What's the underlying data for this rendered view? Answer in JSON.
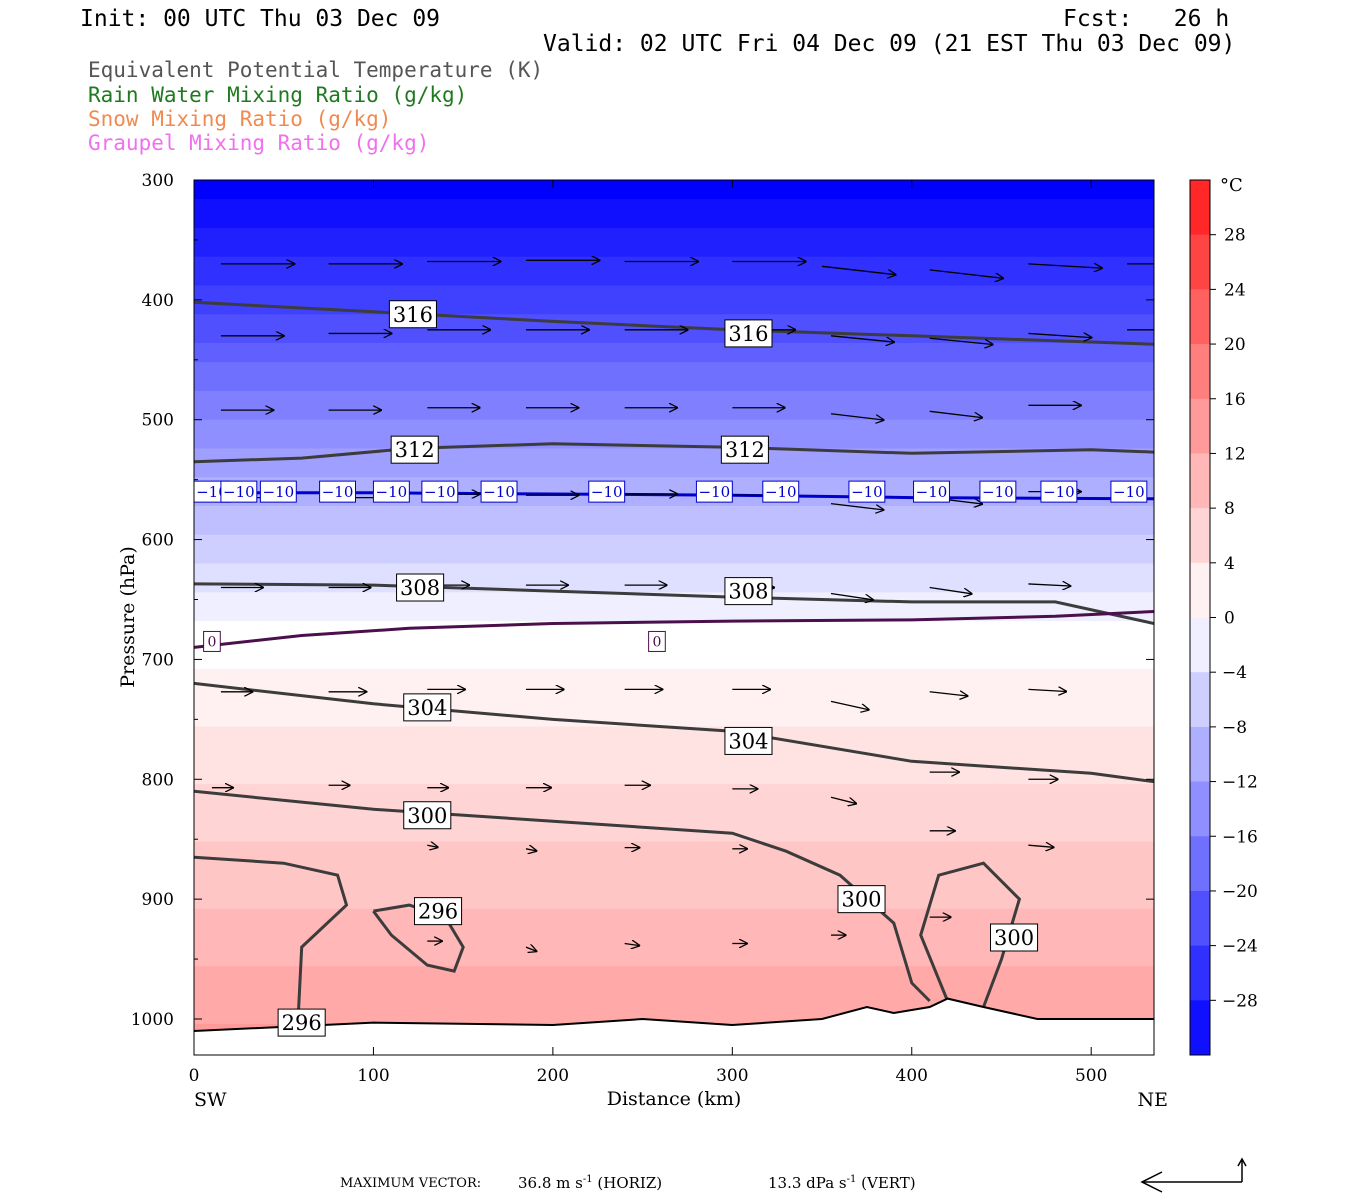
{
  "header": {
    "init": "Init: 00 UTC Thu 03 Dec 09",
    "fcst": "Fcst:   26 h",
    "valid": "Valid: 02 UTC Fri 04 Dec 09 (21 EST Thu 03 Dec 09)"
  },
  "legend": [
    {
      "label": "Equivalent Potential Temperature (K)",
      "color": "#555555"
    },
    {
      "label": "Rain Water Mixing Ratio (g/kg)",
      "color": "#1f7a1f"
    },
    {
      "label": "Snow Mixing Ratio (g/kg)",
      "color": "#f08a50"
    },
    {
      "label": "Graupel Mixing Ratio (g/kg)",
      "color": "#f070f0"
    }
  ],
  "footer": {
    "max_vector_label": "MAXIMUM VECTOR:",
    "horiz_value": "36.8 m s",
    "horiz_unit_sup": "-1",
    "horiz_tag": "(HORIZ)",
    "vert_value": "13.3 dPa s",
    "vert_unit_sup": "-1",
    "vert_tag": "(VERT)"
  },
  "chart_data": {
    "type": "heatmap",
    "xlabel": "Distance (km)",
    "ylabel": "Pressure (hPa)",
    "xlim": [
      0,
      535
    ],
    "ylim": [
      1030,
      300
    ],
    "x_ticks": [
      0,
      100,
      200,
      300,
      400,
      500
    ],
    "y_ticks": [
      300,
      400,
      500,
      600,
      700,
      800,
      900,
      1000
    ],
    "x_left_label": "SW",
    "x_right_label": "NE",
    "colorbar": {
      "unit": "°C",
      "range": [
        -32,
        32
      ],
      "step": 4,
      "tick_labels": [
        28,
        24,
        20,
        16,
        12,
        8,
        4,
        0,
        -4,
        -8,
        -12,
        -16,
        -20,
        -24,
        -28
      ]
    },
    "temperature_isotherm_labels": [
      {
        "value": "-10",
        "x": [
          10,
          25,
          47,
          80,
          110,
          137,
          170,
          230,
          290,
          327,
          375,
          411,
          448,
          482,
          521
        ],
        "p": 560
      },
      {
        "value": "0",
        "x": [
          10,
          258
        ],
        "p": 685
      }
    ],
    "theta_e_contours": [
      {
        "value": 316,
        "points": [
          [
            0,
            402
          ],
          [
            100,
            410
          ],
          [
            200,
            418
          ],
          [
            300,
            425
          ],
          [
            400,
            430
          ],
          [
            535,
            437
          ]
        ],
        "labels": [
          [
            122,
            412
          ],
          [
            309,
            428
          ]
        ]
      },
      {
        "value": 312,
        "points": [
          [
            0,
            535
          ],
          [
            60,
            532
          ],
          [
            120,
            524
          ],
          [
            200,
            520
          ],
          [
            300,
            523
          ],
          [
            400,
            528
          ],
          [
            500,
            525
          ],
          [
            535,
            527
          ]
        ],
        "labels": [
          [
            123,
            525
          ],
          [
            307,
            525
          ]
        ]
      },
      {
        "value": 308,
        "points": [
          [
            0,
            637
          ],
          [
            100,
            638
          ],
          [
            200,
            643
          ],
          [
            300,
            648
          ],
          [
            400,
            652
          ],
          [
            480,
            652
          ],
          [
            535,
            670
          ]
        ],
        "labels": [
          [
            126,
            640
          ],
          [
            309,
            643
          ]
        ]
      },
      {
        "value": 304,
        "points": [
          [
            0,
            720
          ],
          [
            100,
            737
          ],
          [
            200,
            750
          ],
          [
            300,
            760
          ],
          [
            400,
            785
          ],
          [
            500,
            795
          ],
          [
            535,
            802
          ]
        ],
        "labels": [
          [
            130,
            740
          ],
          [
            309,
            768
          ]
        ]
      },
      {
        "value": 300,
        "points": [
          [
            0,
            810
          ],
          [
            100,
            825
          ],
          [
            200,
            835
          ],
          [
            300,
            845
          ],
          [
            330,
            860
          ],
          [
            360,
            880
          ],
          [
            390,
            920
          ],
          [
            400,
            970
          ],
          [
            410,
            985
          ]
        ],
        "labels": [
          [
            130,
            830
          ],
          [
            372,
            900
          ]
        ]
      },
      {
        "value": 300,
        "points": [
          [
            440,
            990
          ],
          [
            450,
            950
          ],
          [
            460,
            900
          ],
          [
            440,
            870
          ],
          [
            415,
            880
          ],
          [
            405,
            930
          ],
          [
            420,
            985
          ]
        ],
        "labels": [
          [
            457,
            932
          ]
        ]
      },
      {
        "value": 296,
        "points": [
          [
            0,
            865
          ],
          [
            50,
            870
          ],
          [
            80,
            880
          ],
          [
            85,
            905
          ],
          [
            60,
            940
          ],
          [
            58,
            1000
          ]
        ],
        "labels": [
          [
            60,
            1003
          ]
        ]
      },
      {
        "value": 296,
        "points": [
          [
            100,
            910
          ],
          [
            120,
            905
          ],
          [
            140,
            915
          ],
          [
            150,
            940
          ],
          [
            145,
            960
          ],
          [
            130,
            955
          ],
          [
            110,
            930
          ],
          [
            100,
            910
          ]
        ],
        "labels": [
          [
            136,
            910
          ]
        ]
      }
    ],
    "isotherms": [
      {
        "value": -10,
        "points": [
          [
            0,
            561
          ],
          [
            100,
            561
          ],
          [
            200,
            562
          ],
          [
            300,
            563
          ],
          [
            400,
            565
          ],
          [
            535,
            566
          ]
        ],
        "color": "#0000cc"
      },
      {
        "value": 0,
        "points": [
          [
            0,
            690
          ],
          [
            60,
            680
          ],
          [
            120,
            674
          ],
          [
            200,
            670
          ],
          [
            300,
            668
          ],
          [
            400,
            667
          ],
          [
            480,
            664
          ],
          [
            535,
            660
          ]
        ],
        "color": "#4b0f4b"
      }
    ],
    "terrain": [
      [
        0,
        1010
      ],
      [
        100,
        1003
      ],
      [
        200,
        1005
      ],
      [
        250,
        1000
      ],
      [
        300,
        1005
      ],
      [
        350,
        1000
      ],
      [
        375,
        990
      ],
      [
        390,
        995
      ],
      [
        410,
        990
      ],
      [
        420,
        983
      ],
      [
        440,
        990
      ],
      [
        470,
        1000
      ],
      [
        500,
        1000
      ],
      [
        535,
        1000
      ]
    ],
    "wind_vectors": [
      {
        "x": 15,
        "p": 370,
        "u": 35,
        "w": 0
      },
      {
        "x": 75,
        "p": 370,
        "u": 35,
        "w": 0
      },
      {
        "x": 130,
        "p": 368,
        "u": 35,
        "w": 0
      },
      {
        "x": 185,
        "p": 367,
        "u": 35,
        "w": 0
      },
      {
        "x": 240,
        "p": 368,
        "u": 35,
        "w": 0
      },
      {
        "x": 300,
        "p": 368,
        "u": 35,
        "w": 0
      },
      {
        "x": 350,
        "p": 372,
        "u": 35,
        "w": -4
      },
      {
        "x": 410,
        "p": 375,
        "u": 35,
        "w": -4
      },
      {
        "x": 465,
        "p": 370,
        "u": 35,
        "w": -2
      },
      {
        "x": 520,
        "p": 370,
        "u": 30,
        "w": 0
      },
      {
        "x": 15,
        "p": 430,
        "u": 30,
        "w": 0
      },
      {
        "x": 75,
        "p": 428,
        "u": 30,
        "w": 0
      },
      {
        "x": 130,
        "p": 425,
        "u": 30,
        "w": 0
      },
      {
        "x": 185,
        "p": 425,
        "u": 30,
        "w": 0
      },
      {
        "x": 240,
        "p": 425,
        "u": 30,
        "w": 0
      },
      {
        "x": 300,
        "p": 425,
        "u": 30,
        "w": 0
      },
      {
        "x": 355,
        "p": 430,
        "u": 30,
        "w": -3
      },
      {
        "x": 410,
        "p": 432,
        "u": 30,
        "w": -3
      },
      {
        "x": 465,
        "p": 428,
        "u": 30,
        "w": -2
      },
      {
        "x": 520,
        "p": 425,
        "u": 25,
        "w": 0
      },
      {
        "x": 15,
        "p": 492,
        "u": 25,
        "w": 0
      },
      {
        "x": 75,
        "p": 492,
        "u": 25,
        "w": 0
      },
      {
        "x": 130,
        "p": 490,
        "u": 25,
        "w": 0
      },
      {
        "x": 185,
        "p": 490,
        "u": 25,
        "w": 0
      },
      {
        "x": 240,
        "p": 490,
        "u": 25,
        "w": 0
      },
      {
        "x": 300,
        "p": 490,
        "u": 25,
        "w": 0
      },
      {
        "x": 355,
        "p": 495,
        "u": 25,
        "w": -3
      },
      {
        "x": 410,
        "p": 493,
        "u": 25,
        "w": -3
      },
      {
        "x": 465,
        "p": 488,
        "u": 25,
        "w": 0
      },
      {
        "x": 15,
        "p": 565,
        "u": 25,
        "w": 0
      },
      {
        "x": 75,
        "p": 565,
        "u": 25,
        "w": 0
      },
      {
        "x": 130,
        "p": 562,
        "u": 25,
        "w": 0
      },
      {
        "x": 185,
        "p": 563,
        "u": 25,
        "w": 0
      },
      {
        "x": 240,
        "p": 562,
        "u": 25,
        "w": 0
      },
      {
        "x": 300,
        "p": 563,
        "u": 25,
        "w": 0
      },
      {
        "x": 355,
        "p": 570,
        "u": 25,
        "w": -3
      },
      {
        "x": 410,
        "p": 565,
        "u": 25,
        "w": -3
      },
      {
        "x": 465,
        "p": 560,
        "u": 25,
        "w": 0
      },
      {
        "x": 15,
        "p": 640,
        "u": 20,
        "w": 0
      },
      {
        "x": 75,
        "p": 640,
        "u": 20,
        "w": 0
      },
      {
        "x": 130,
        "p": 638,
        "u": 20,
        "w": 0
      },
      {
        "x": 185,
        "p": 638,
        "u": 20,
        "w": 0
      },
      {
        "x": 240,
        "p": 638,
        "u": 20,
        "w": 0
      },
      {
        "x": 300,
        "p": 640,
        "u": 20,
        "w": 0
      },
      {
        "x": 355,
        "p": 645,
        "u": 20,
        "w": -3
      },
      {
        "x": 410,
        "p": 640,
        "u": 20,
        "w": -3
      },
      {
        "x": 465,
        "p": 637,
        "u": 20,
        "w": -1
      },
      {
        "x": 15,
        "p": 727,
        "u": 15,
        "w": 0
      },
      {
        "x": 75,
        "p": 727,
        "u": 18,
        "w": 0
      },
      {
        "x": 130,
        "p": 725,
        "u": 18,
        "w": 0
      },
      {
        "x": 185,
        "p": 725,
        "u": 18,
        "w": 0
      },
      {
        "x": 240,
        "p": 725,
        "u": 18,
        "w": 0
      },
      {
        "x": 300,
        "p": 725,
        "u": 18,
        "w": 0
      },
      {
        "x": 355,
        "p": 735,
        "u": 18,
        "w": -4
      },
      {
        "x": 410,
        "p": 727,
        "u": 18,
        "w": -2
      },
      {
        "x": 465,
        "p": 725,
        "u": 18,
        "w": -1
      },
      {
        "x": 10,
        "p": 807,
        "u": 10,
        "w": 0
      },
      {
        "x": 75,
        "p": 805,
        "u": 10,
        "w": 0
      },
      {
        "x": 130,
        "p": 807,
        "u": 10,
        "w": 0
      },
      {
        "x": 185,
        "p": 807,
        "u": 12,
        "w": 0
      },
      {
        "x": 240,
        "p": 805,
        "u": 12,
        "w": 0
      },
      {
        "x": 300,
        "p": 808,
        "u": 12,
        "w": 0
      },
      {
        "x": 355,
        "p": 815,
        "u": 12,
        "w": -3
      },
      {
        "x": 410,
        "p": 794,
        "u": 14,
        "w": 0
      },
      {
        "x": 465,
        "p": 800,
        "u": 14,
        "w": 0
      },
      {
        "x": 130,
        "p": 855,
        "u": 5,
        "w": -1
      },
      {
        "x": 185,
        "p": 858,
        "u": 5,
        "w": -1
      },
      {
        "x": 240,
        "p": 857,
        "u": 7,
        "w": 0
      },
      {
        "x": 300,
        "p": 858,
        "u": 7,
        "w": 0
      },
      {
        "x": 410,
        "p": 843,
        "u": 12,
        "w": 0
      },
      {
        "x": 465,
        "p": 855,
        "u": 12,
        "w": -1
      },
      {
        "x": 130,
        "p": 935,
        "u": 7,
        "w": 0
      },
      {
        "x": 185,
        "p": 940,
        "u": 5,
        "w": -2
      },
      {
        "x": 240,
        "p": 937,
        "u": 7,
        "w": -1
      },
      {
        "x": 300,
        "p": 937,
        "u": 7,
        "w": 0
      },
      {
        "x": 355,
        "p": 930,
        "u": 7,
        "w": 0
      },
      {
        "x": 410,
        "p": 915,
        "u": 10,
        "w": 0
      }
    ]
  }
}
